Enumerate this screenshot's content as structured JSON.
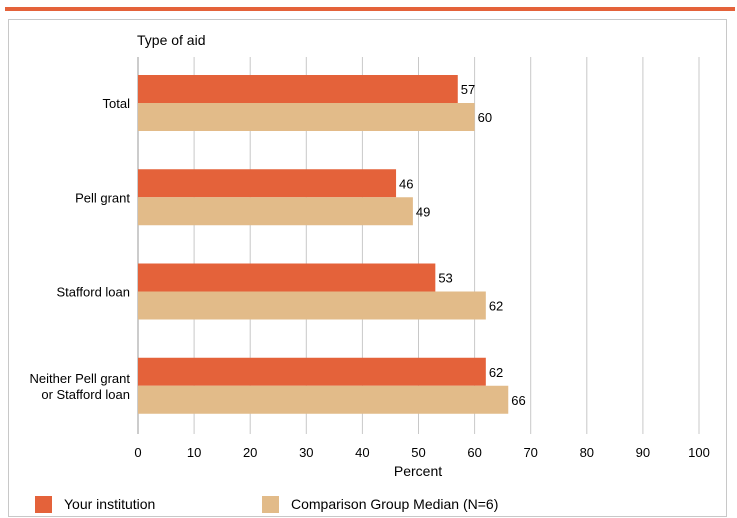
{
  "colors": {
    "accent": "#e4623a",
    "your": "#e4623a",
    "comparison": "#e2bb89",
    "grid": "#c8c8c8"
  },
  "chart_data": {
    "type": "bar",
    "orientation": "horizontal",
    "title": "Type of aid",
    "xlabel": "Percent",
    "xlim": [
      0,
      100
    ],
    "xticks": [
      0,
      10,
      20,
      30,
      40,
      50,
      60,
      70,
      80,
      90,
      100
    ],
    "categories": [
      "Total",
      "Pell grant",
      "Stafford loan",
      "Neither Pell grant or Stafford loan"
    ],
    "series": [
      {
        "name": "Your institution",
        "values": [
          57,
          46,
          53,
          62
        ],
        "color": "#e4623a"
      },
      {
        "name": "Comparison Group Median (N=6)",
        "values": [
          60,
          49,
          62,
          66
        ],
        "color": "#e2bb89"
      }
    ],
    "grid": true,
    "legend": "bottom"
  }
}
